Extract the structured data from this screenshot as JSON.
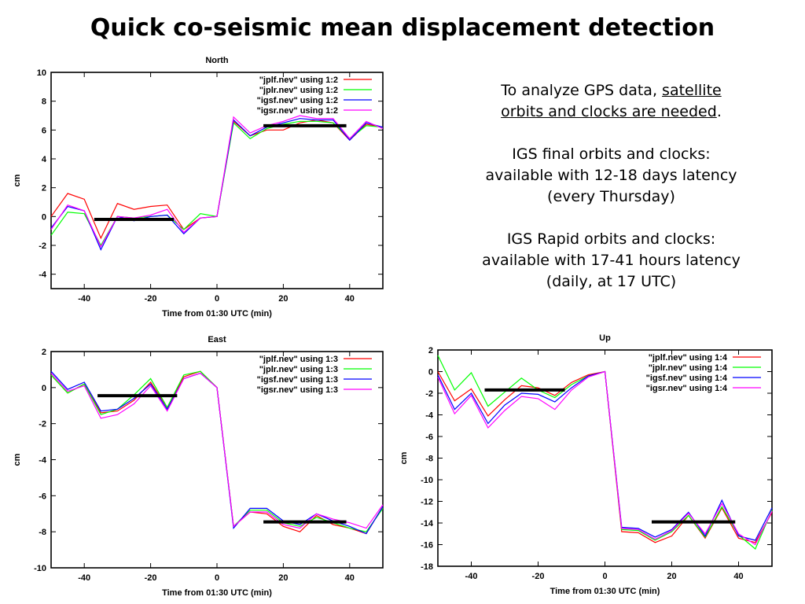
{
  "title": "Quick co-seismic mean displacement detection",
  "notes": {
    "p1_pre": "To analyze GPS data, ",
    "p1_u1": "satellite",
    "p1_u2": "orbits and clocks are needed",
    "p1_post": ".",
    "p2_l1": "IGS final orbits and clocks:",
    "p2_l2": "available with 12-18 days latency",
    "p2_l3": "(every Thursday)",
    "p3_l1": "IGS Rapid orbits and clocks:",
    "p3_l2": "available with 17-41 hours latency",
    "p3_l3": "(daily, at 17 UTC)"
  },
  "chart_data": [
    {
      "type": "line",
      "title": "North",
      "xlabel": "Time from 01:30 UTC (min)",
      "ylabel": "cm",
      "xlim": [
        -50,
        50
      ],
      "ylim": [
        -5,
        10
      ],
      "xticks": [
        -40,
        -20,
        0,
        20,
        40
      ],
      "yticks": [
        -4,
        -2,
        0,
        2,
        4,
        6,
        8,
        10
      ],
      "legend_position": "top-right",
      "grid": false,
      "x": [
        -50,
        -45,
        -40,
        -35,
        -30,
        -25,
        -20,
        -15,
        -10,
        -5,
        0,
        5,
        10,
        15,
        20,
        25,
        30,
        35,
        40,
        45,
        50
      ],
      "series": [
        {
          "name": "\"jplf.nev\" using 1:2",
          "color": "#ff0000",
          "values": [
            0.0,
            1.6,
            1.2,
            -1.5,
            0.9,
            0.5,
            0.7,
            0.8,
            -0.9,
            -0.1,
            0.0,
            6.6,
            5.6,
            6.0,
            6.0,
            6.5,
            6.7,
            6.5,
            5.3,
            6.4,
            6.2
          ]
        },
        {
          "name": "\"jplr.nev\" using 1:2",
          "color": "#00ff00",
          "values": [
            -1.3,
            0.3,
            0.2,
            -2.0,
            0.0,
            -0.1,
            0.0,
            0.1,
            -0.9,
            0.2,
            0.0,
            6.5,
            5.4,
            6.1,
            6.4,
            6.6,
            6.6,
            6.5,
            5.4,
            6.3,
            6.2
          ]
        },
        {
          "name": "\"igsf.nev\" using 1:2",
          "color": "#0000ff",
          "values": [
            -0.8,
            0.7,
            0.4,
            -2.3,
            0.0,
            -0.3,
            0.0,
            0.1,
            -1.2,
            -0.1,
            0.0,
            6.7,
            5.6,
            6.2,
            6.5,
            6.8,
            6.7,
            6.7,
            5.3,
            6.5,
            6.2
          ]
        },
        {
          "name": "\"igsr.nev\" using 1:2",
          "color": "#ff00ff",
          "values": [
            -0.9,
            0.8,
            0.4,
            -2.1,
            0.0,
            -0.1,
            0.1,
            0.5,
            -1.1,
            -0.1,
            0.0,
            6.9,
            5.8,
            6.3,
            6.6,
            7.0,
            6.8,
            6.8,
            5.4,
            6.6,
            6.1
          ]
        }
      ],
      "mean_lines": [
        {
          "x": [
            -37,
            -13
          ],
          "y": -0.2
        },
        {
          "x": [
            14,
            39
          ],
          "y": 6.3
        }
      ]
    },
    {
      "type": "line",
      "title": "East",
      "xlabel": "Time from 01:30 UTC (min)",
      "ylabel": "cm",
      "xlim": [
        -50,
        50
      ],
      "ylim": [
        -10,
        2
      ],
      "xticks": [
        -40,
        -20,
        0,
        20,
        40
      ],
      "yticks": [
        -10,
        -8,
        -6,
        -4,
        -2,
        0,
        2
      ],
      "legend_position": "top-right",
      "grid": false,
      "x": [
        -50,
        -45,
        -40,
        -35,
        -30,
        -25,
        -20,
        -15,
        -10,
        -5,
        0,
        5,
        10,
        15,
        20,
        25,
        30,
        35,
        40,
        45,
        50
      ],
      "series": [
        {
          "name": "\"jplf.nev\" using 1:3",
          "color": "#ff0000",
          "values": [
            0.7,
            -0.3,
            0.2,
            -1.4,
            -1.3,
            -0.7,
            0.3,
            -1.1,
            0.6,
            0.9,
            0.0,
            -7.7,
            -6.9,
            -7.0,
            -7.7,
            -8.0,
            -7.1,
            -7.6,
            -7.8,
            -8.1,
            -6.6
          ]
        },
        {
          "name": "\"jplr.nev\" using 1:3",
          "color": "#00ff00",
          "values": [
            0.7,
            -0.3,
            0.2,
            -1.5,
            -1.2,
            -0.4,
            0.5,
            -1.1,
            0.7,
            0.9,
            0.0,
            -7.7,
            -6.8,
            -6.8,
            -7.5,
            -7.7,
            -7.2,
            -7.5,
            -7.8,
            -8.0,
            -6.7
          ]
        },
        {
          "name": "\"igsf.nev\" using 1:3",
          "color": "#0000ff",
          "values": [
            0.9,
            -0.1,
            0.3,
            -1.3,
            -1.2,
            -0.6,
            0.2,
            -1.2,
            0.5,
            0.8,
            0.0,
            -7.8,
            -6.7,
            -6.7,
            -7.4,
            -7.6,
            -7.0,
            -7.4,
            -7.7,
            -8.1,
            -6.6
          ]
        },
        {
          "name": "\"igsr.nev\" using 1:3",
          "color": "#ff00ff",
          "values": [
            0.8,
            -0.2,
            0.1,
            -1.7,
            -1.5,
            -0.9,
            0.1,
            -1.3,
            0.5,
            0.8,
            0.0,
            -7.7,
            -6.9,
            -6.9,
            -7.6,
            -7.8,
            -7.0,
            -7.3,
            -7.5,
            -7.8,
            -6.5
          ]
        }
      ],
      "mean_lines": [
        {
          "x": [
            -36,
            -12
          ],
          "y": -0.45
        },
        {
          "x": [
            14,
            39
          ],
          "y": -7.45
        }
      ]
    },
    {
      "type": "line",
      "title": "Up",
      "xlabel": "Time from 01:30 UTC (min)",
      "ylabel": "cm",
      "xlim": [
        -50,
        50
      ],
      "ylim": [
        -18,
        2
      ],
      "xticks": [
        -40,
        -20,
        0,
        20,
        40
      ],
      "yticks": [
        -18,
        -16,
        -14,
        -12,
        -10,
        -8,
        -6,
        -4,
        -2,
        0,
        2
      ],
      "legend_position": "top-right",
      "grid": false,
      "x": [
        -50,
        -45,
        -40,
        -35,
        -30,
        -25,
        -20,
        -15,
        -10,
        -5,
        0,
        5,
        10,
        15,
        20,
        25,
        30,
        35,
        40,
        45,
        50
      ],
      "series": [
        {
          "name": "\"jplf.nev\" using 1:4",
          "color": "#ff0000",
          "values": [
            0.0,
            -2.7,
            -1.6,
            -4.1,
            -2.6,
            -1.3,
            -1.5,
            -2.2,
            -1.0,
            -0.3,
            0.0,
            -14.8,
            -14.9,
            -15.8,
            -15.2,
            -13.3,
            -15.4,
            -12.6,
            -15.4,
            -15.8,
            -13.0
          ]
        },
        {
          "name": "\"jplr.nev\" using 1:4",
          "color": "#00ff00",
          "values": [
            1.5,
            -1.7,
            -0.1,
            -3.2,
            -1.9,
            -0.6,
            -1.7,
            -2.4,
            -1.2,
            -0.4,
            0.0,
            -14.6,
            -14.7,
            -15.6,
            -14.8,
            -13.3,
            -15.3,
            -12.5,
            -15.1,
            -16.4,
            -12.8
          ]
        },
        {
          "name": "\"igsf.nev\" using 1:4",
          "color": "#0000ff",
          "values": [
            -0.3,
            -3.5,
            -2.0,
            -4.8,
            -3.1,
            -2.0,
            -2.1,
            -2.8,
            -1.5,
            -0.4,
            0.0,
            -14.4,
            -14.5,
            -15.3,
            -14.6,
            -13.0,
            -15.2,
            -11.9,
            -15.2,
            -15.6,
            -12.6
          ]
        },
        {
          "name": "\"igsr.nev\" using 1:4",
          "color": "#ff00ff",
          "values": [
            -0.5,
            -3.9,
            -2.2,
            -5.2,
            -3.6,
            -2.3,
            -2.5,
            -3.5,
            -1.7,
            -0.5,
            0.0,
            -14.5,
            -14.6,
            -15.5,
            -14.7,
            -13.1,
            -15.0,
            -12.2,
            -15.0,
            -16.0,
            -12.9
          ]
        }
      ],
      "mean_lines": [
        {
          "x": [
            -36,
            -12
          ],
          "y": -1.7
        },
        {
          "x": [
            14,
            39
          ],
          "y": -13.9
        }
      ]
    }
  ]
}
